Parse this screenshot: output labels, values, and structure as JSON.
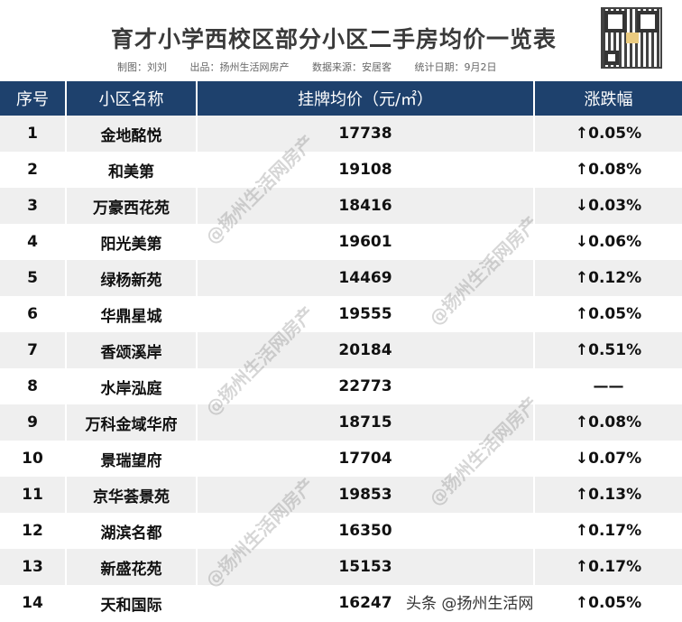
{
  "title": "育才小学西校区部分小区二手房均价一览表",
  "subtitle": {
    "author": "制图：刘刘",
    "producer": "出品：扬州生活网房产",
    "source": "数据来源：安居客",
    "date": "统计日期：9月2日"
  },
  "headers": [
    "序号",
    "小区名称",
    "挂牌均价（元/㎡）",
    "涨跌幅"
  ],
  "rows": [
    [
      "1",
      "金地酩悦",
      "17738",
      "↑0.05%"
    ],
    [
      "2",
      "和美第",
      "19108",
      "↑0.08%"
    ],
    [
      "3",
      "万豪西花苑",
      "18416",
      "↓0.03%"
    ],
    [
      "4",
      "阳光美第",
      "19601",
      "↓0.06%"
    ],
    [
      "5",
      "绿杨新苑",
      "14469",
      "↑0.12%"
    ],
    [
      "6",
      "华鼎星城",
      "19555",
      "↑0.05%"
    ],
    [
      "7",
      "香颂溪岸",
      "20184",
      "↑0.51%"
    ],
    [
      "8",
      "水岸泓庭",
      "22773",
      "——"
    ],
    [
      "9",
      "万科金域华府",
      "18715",
      "↑0.08%"
    ],
    [
      "10",
      "景瑞望府",
      "17704",
      "↓0.07%"
    ],
    [
      "11",
      "京华荟景苑",
      "19853",
      "↑0.13%"
    ],
    [
      "12",
      "湖滨名都",
      "16350",
      "↑0.17%"
    ],
    [
      "13",
      "新盛花苑",
      "15153",
      "↑0.17%"
    ],
    [
      "14",
      "天和国际",
      "16247",
      "↑0.05%"
    ]
  ],
  "watermark": "@扬州生活网房产",
  "footer": "头条 @扬州生活网",
  "colors": {
    "header_bg": "#1e416d",
    "row_alt": "#efefef"
  }
}
